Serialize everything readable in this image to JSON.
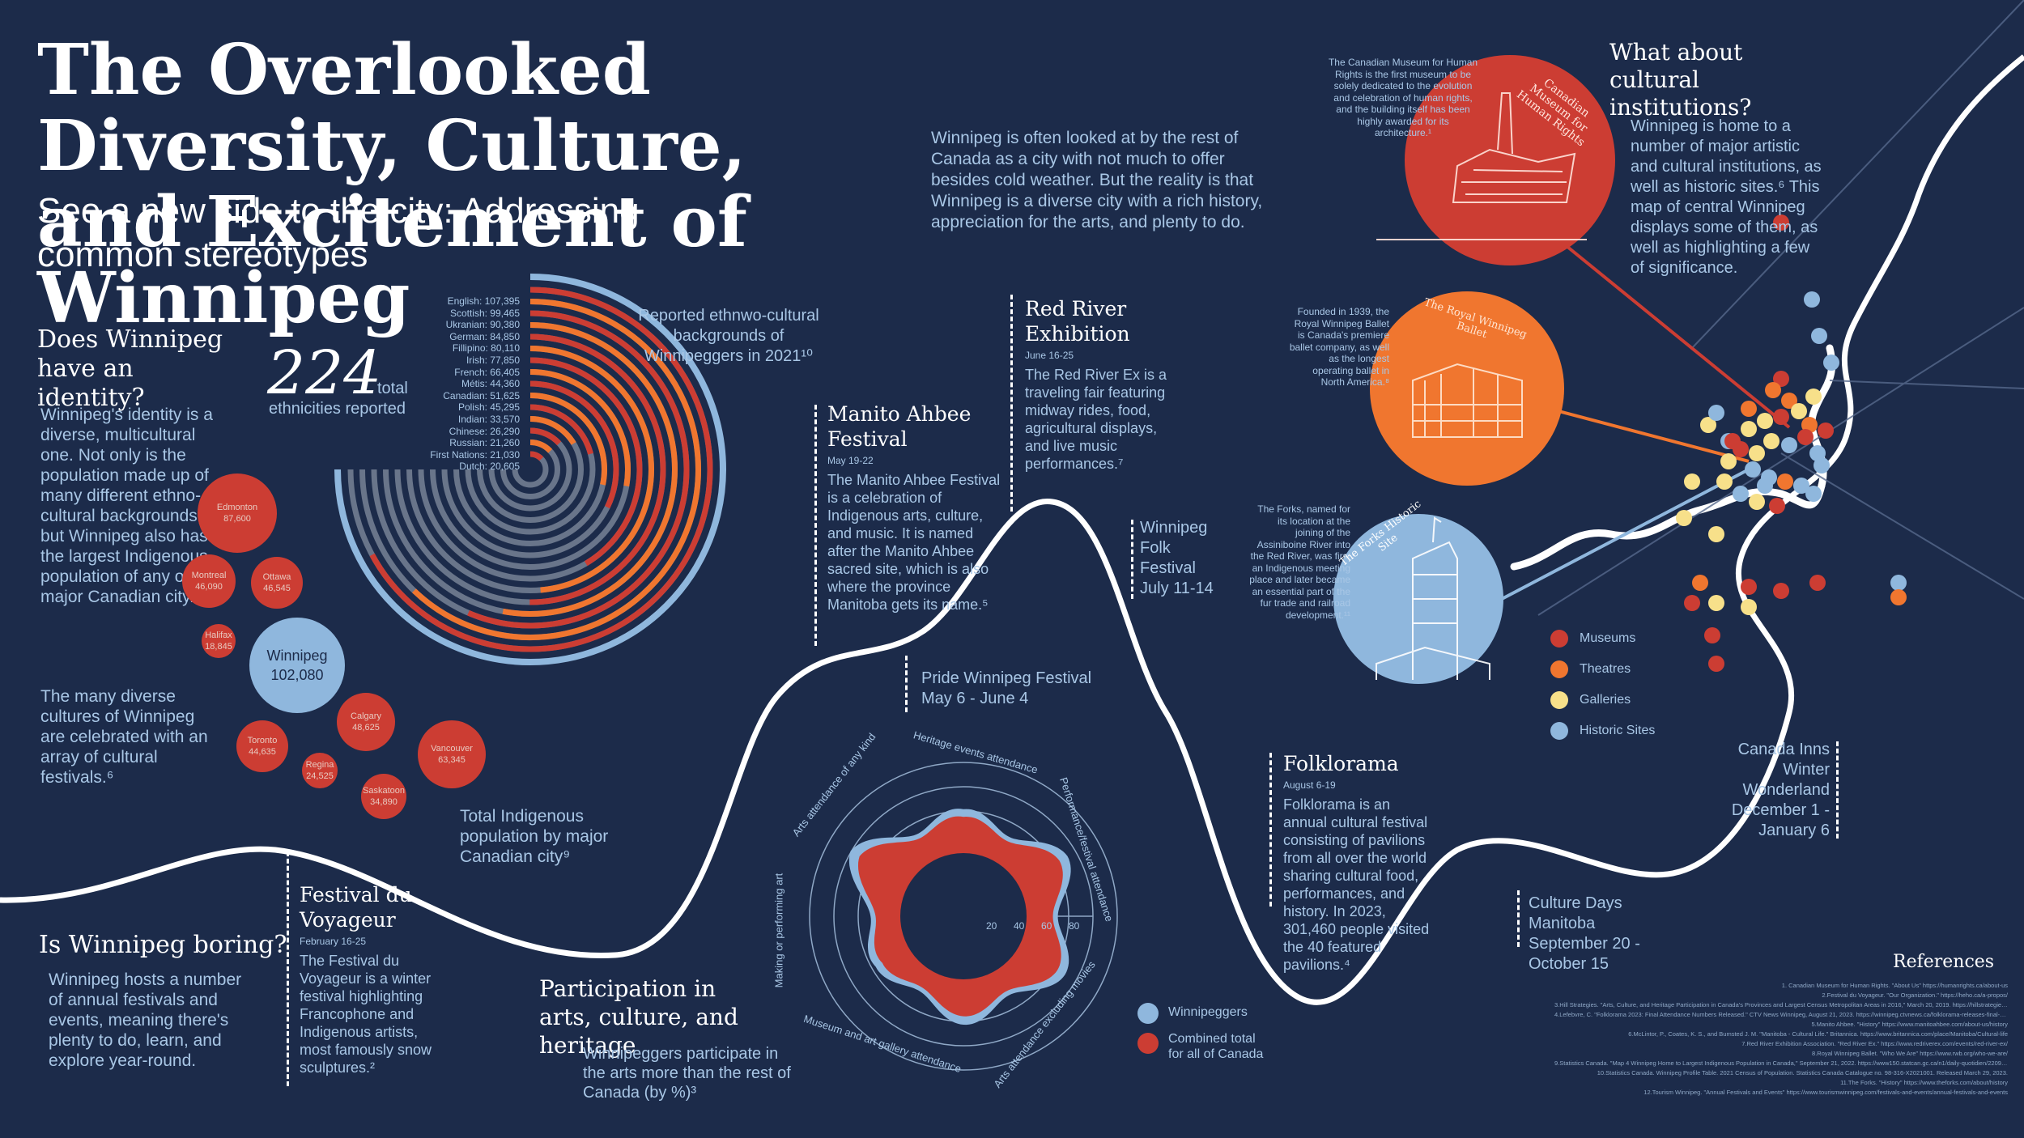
{
  "colors": {
    "background": "#1c2b4a",
    "red": "#cc3d33",
    "orange": "#f0762f",
    "yellow": "#f7e08a",
    "lightblue": "#8fb7dd",
    "grey": "#6b7280"
  },
  "header": {
    "title_line1": "The Overlooked Diversity, Culture,",
    "title_line2": "and Excitement of Winnipeg",
    "subtitle_line1": "See a new side to the city: Addressing",
    "subtitle_line2": "common stereotypes"
  },
  "intro": "Winnipeg is often looked at by the rest of Canada as a city with not much to offer besides cold weather. But the reality is that Winnipeg is a diverse city with a rich history, appreciation for the arts, and plenty to do.",
  "identity": {
    "heading": "Does Winnipeg have an identity?",
    "body1": "Winnipeg's identity is a diverse, multicultural one. Not only is the population made up of many different ethno-cultural backgrounds, but Winnipeg also has the largest Indigenous population of any other major Canadian city.⁹",
    "body2": "The many diverse cultures of Winnipeg are celebrated with an array of cultural festivals.⁶",
    "big_number": "224",
    "big_number_label1": "total",
    "big_number_label2": "ethnicities reported",
    "indigenous_caption": "Total Indigenous population by major Canadian city⁹"
  },
  "bubbles": [
    {
      "city": "Edmonton",
      "value": "87,600"
    },
    {
      "city": "Montreal",
      "value": "46,090"
    },
    {
      "city": "Ottawa",
      "value": "46,545"
    },
    {
      "city": "Halifax",
      "value": "18,845"
    },
    {
      "city": "Winnipeg",
      "value": "102,080"
    },
    {
      "city": "Calgary",
      "value": "48,625"
    },
    {
      "city": "Toronto",
      "value": "44,635"
    },
    {
      "city": "Regina",
      "value": "24,525"
    },
    {
      "city": "Vancouver",
      "value": "63,345"
    },
    {
      "city": "Saskatoon",
      "value": "34,890"
    }
  ],
  "ethno": {
    "caption": "Reported ethnwo-cultural backgrounds of Winnipeggers in 2021¹⁰",
    "labels": [
      "English: 107,395",
      "Scottish: 99,465",
      "Ukranian: 90,380",
      "German: 84,850",
      "Fillipino: 80,110",
      "Irish: 77,850",
      "French: 66,405",
      "Métis: 44,360",
      "Canadian: 51,625",
      "Polish: 45,295",
      "Indian: 33,570",
      "Chinese: 26,290",
      "Russian: 21,260",
      "First Nations: 21,030",
      "Dutch: 20,605"
    ]
  },
  "chart_data": {
    "type": "radial-bar",
    "title": "Reported ethnwo-cultural backgrounds of Winnipeggers in 2021",
    "categories": [
      "English",
      "Scottish",
      "Ukranian",
      "German",
      "Fillipino",
      "Irish",
      "French",
      "Métis",
      "Canadian",
      "Polish",
      "Indian",
      "Chinese",
      "Russian",
      "First Nations",
      "Dutch"
    ],
    "values": [
      107395,
      99465,
      90380,
      84850,
      80110,
      77850,
      66405,
      44360,
      51625,
      45295,
      33570,
      26290,
      21260,
      21030,
      20605
    ]
  },
  "chart_data_radar": {
    "type": "radar",
    "title": "Participation in arts, culture, and heritage",
    "axes": [
      "Heritage events attendance",
      "Performance/festival attendance",
      "Arts attendance excluding movies",
      "Museum and art gallery attendance",
      "Making or performing art",
      "Arts attendance of any kind"
    ],
    "ticks": [
      "20",
      "40",
      "60",
      "80"
    ],
    "series": [
      {
        "name": "Winnipeggers",
        "values": [
          58,
          76,
          72,
          60,
          50,
          90
        ]
      },
      {
        "name": "Combined total for all of Canada",
        "values": [
          54,
          72,
          68,
          55,
          45,
          86
        ]
      }
    ]
  },
  "events": {
    "voyageur": {
      "title": "Festival du Voyageur",
      "date": "February 16-25",
      "body": "The Festival du Voyageur is a winter festival highlighting Francophone and Indigenous artists, most famously snow sculptures.²"
    },
    "manito": {
      "title": "Manito Ahbee Festival",
      "date": "May 19-22",
      "body": "The Manito Ahbee Festival is a celebration of Indigenous arts, culture, and music. It is named after the Manito Ahbee sacred site, which is also where the province Manitoba gets its name.⁵"
    },
    "pride": {
      "title": "Pride Winnipeg Festival",
      "date": "May 6 - June 4"
    },
    "redriver": {
      "title": "Red River Exhibition",
      "date": "June 16-25",
      "body": "The Red River Ex is a traveling fair featuring midway rides, food, agricultural displays, and live music performances.⁷"
    },
    "folk": {
      "title": "Winnipeg Folk Festival",
      "date": "July 11-14"
    },
    "folklorama": {
      "title": "Folklorama",
      "date": "August 6-19",
      "body": "Folklorama is an annual cultural festival consisting of pavilions from all over the world sharing cultural food, performances, and history. In 2023, 301,460 people visited the 40 featured pavilions.⁴"
    },
    "culturedays": {
      "title": "Culture Days Manitoba",
      "date": "September 20 - October 15"
    },
    "canadainns": {
      "title": "Canada Inns Winter Wonderland",
      "date": "December 1 - January 6"
    }
  },
  "boring": {
    "heading": "Is Winnipeg boring?",
    "body": "Winnipeg hosts a number of annual festivals and events, meaning there's plenty to do, learn, and explore year-round."
  },
  "participation": {
    "heading": "Participation in arts, culture, and heritage",
    "body": "Winnipeggers participate in the arts more than the rest of Canada (by %)³"
  },
  "institutions": {
    "heading": "What about cultural institutions?",
    "body": "Winnipeg is home to a number of major artistic and cultural institutions, as well as historic sites.⁶ This map of central Winnipeg displays some of them, as well as highlighting a few of significance.",
    "museum_name": "Canadian Museum for Human Rights",
    "museum_text": "The Canadian Museum for Human Rights is the first museum to be solely dedicated to the evolution and celebration of human rights, and the building itself has been highly awarded for its architecture.¹",
    "ballet_name": "The Royal Winnipeg Ballet",
    "ballet_text": "Founded in 1939, the Royal Winnipeg Ballet is Canada's premiere ballet company, as well as the longest operating ballet in North America.⁸",
    "forks_name": "The Forks Historic Site",
    "forks_text": "The Forks, named for its location at the joining of the Assiniboine River into the Red River, was first an Indigenous meeting place and later became an essential part of the fur trade and railroad development.¹¹"
  },
  "legend": {
    "museums": "Museums",
    "theatres": "Theatres",
    "galleries": "Galleries",
    "historic": "Historic Sites"
  },
  "references": {
    "heading": "References",
    "items": [
      "1. Canadian Museum for Human Rights. \"About Us\" https://humanrights.ca/about-us",
      "2.Festival du Voyageur. \"Our Organization.\" https://heho.ca/a-propos/",
      "3.Hill Strategies. \"Arts, Culture, and Heritage Participation in Canada's Provinces and Largest Census Metropolitan Areas in 2016,\" March 20, 2019. https://hillstrategies.com/resource/cultur-al-participation-provinces-cmas-2016/",
      "4.Lefebvre, C. \"Folklorama 2023: Final Attendance Numbers Released.\" CTV News Winnipeg, August 21, 2023. https://winnipeg.ctvnews.ca/folklorama-releases-final-attendance-num-bers-for-2023-festival-1.6528074",
      "5.Manito Ahbee. \"History\" https://www.manitoahbee.com/about-us/history",
      "6.McLintor, P., Coates, K. S., and Bumsted J. M. \"Manitoba - Cultural Life.\" Britannica. https://www.britannica.com/place/Manitoba/Cultural-life",
      "7.Red River Exhibition Association. \"Red River Ex.\" https://www.redriverex.com/events/red-river-ex/",
      "8.Royal Winnipeg Ballet. \"Who We Are\" https://www.rwb.org/who-we-are/",
      "9.Statistics Canada. \"Map 4 Winnipeg Home to Largest Indigenous Population in Canada,\" September 21, 2022. https://www150.statcan.gc.ca/n1/daily-quotidien/220921/mc-a004-eng.htm",
      "10.Statistics Canada. Winnipeg Profile Table. 2021 Census of Population. Statistics Canada Catalogue no. 98-316-X2021001. Released March 29, 2023.",
      "11.The Forks. \"History\" https://www.theforks.com/about/history",
      "12.Tourism Winnipeg. \"Annual Festivals and Events\" https://www.tourismwinnipeg.com/festivals-and-events/annual-festivals-and-events"
    ]
  }
}
